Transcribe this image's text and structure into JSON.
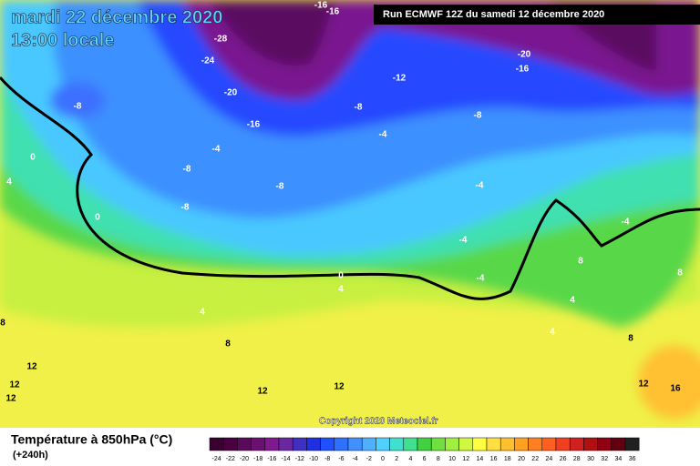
{
  "header": {
    "title": "mardi 22 décembre 2020",
    "time": "13:00 locale"
  },
  "run": "Run ECMWF 12Z du samedi 12 décembre 2020",
  "copyright": "Copyright 2020 Meteociel.fr",
  "legend": {
    "title": "Température à 850hPa (°C)",
    "lead": "(+240h)",
    "ticks": [
      -24,
      -22,
      -20,
      -18,
      -16,
      -14,
      -12,
      -10,
      -8,
      -6,
      -4,
      -2,
      0,
      2,
      4,
      6,
      8,
      10,
      12,
      14,
      16,
      18,
      20,
      22,
      24,
      26,
      28,
      30,
      32,
      34,
      36
    ],
    "colors": [
      "#3a0030",
      "#4a0040",
      "#5a0a5a",
      "#6a1070",
      "#801890",
      "#6a28a0",
      "#4030c0",
      "#2030e0",
      "#2050ff",
      "#3070ff",
      "#4090ff",
      "#50b0ff",
      "#50d0ff",
      "#40e0d0",
      "#40e090",
      "#40d040",
      "#70e040",
      "#a0f040",
      "#d0f840",
      "#ffff40",
      "#ffe040",
      "#ffc030",
      "#ffa020",
      "#ff8020",
      "#ff6020",
      "#f04020",
      "#d02020",
      "#b01010",
      "#900010",
      "#600010",
      "#202020"
    ]
  },
  "contour_labels": [
    -16,
    -16,
    -28,
    -24,
    -20,
    -16,
    -8,
    -12,
    -20,
    -16,
    -8,
    -8,
    -4,
    -8,
    -4,
    -8,
    -4,
    -8,
    0,
    4,
    0,
    -4,
    -4,
    -4,
    8,
    8,
    0,
    4,
    4,
    4,
    8,
    4,
    8,
    8,
    12,
    12,
    12,
    12,
    12,
    12,
    16
  ]
}
